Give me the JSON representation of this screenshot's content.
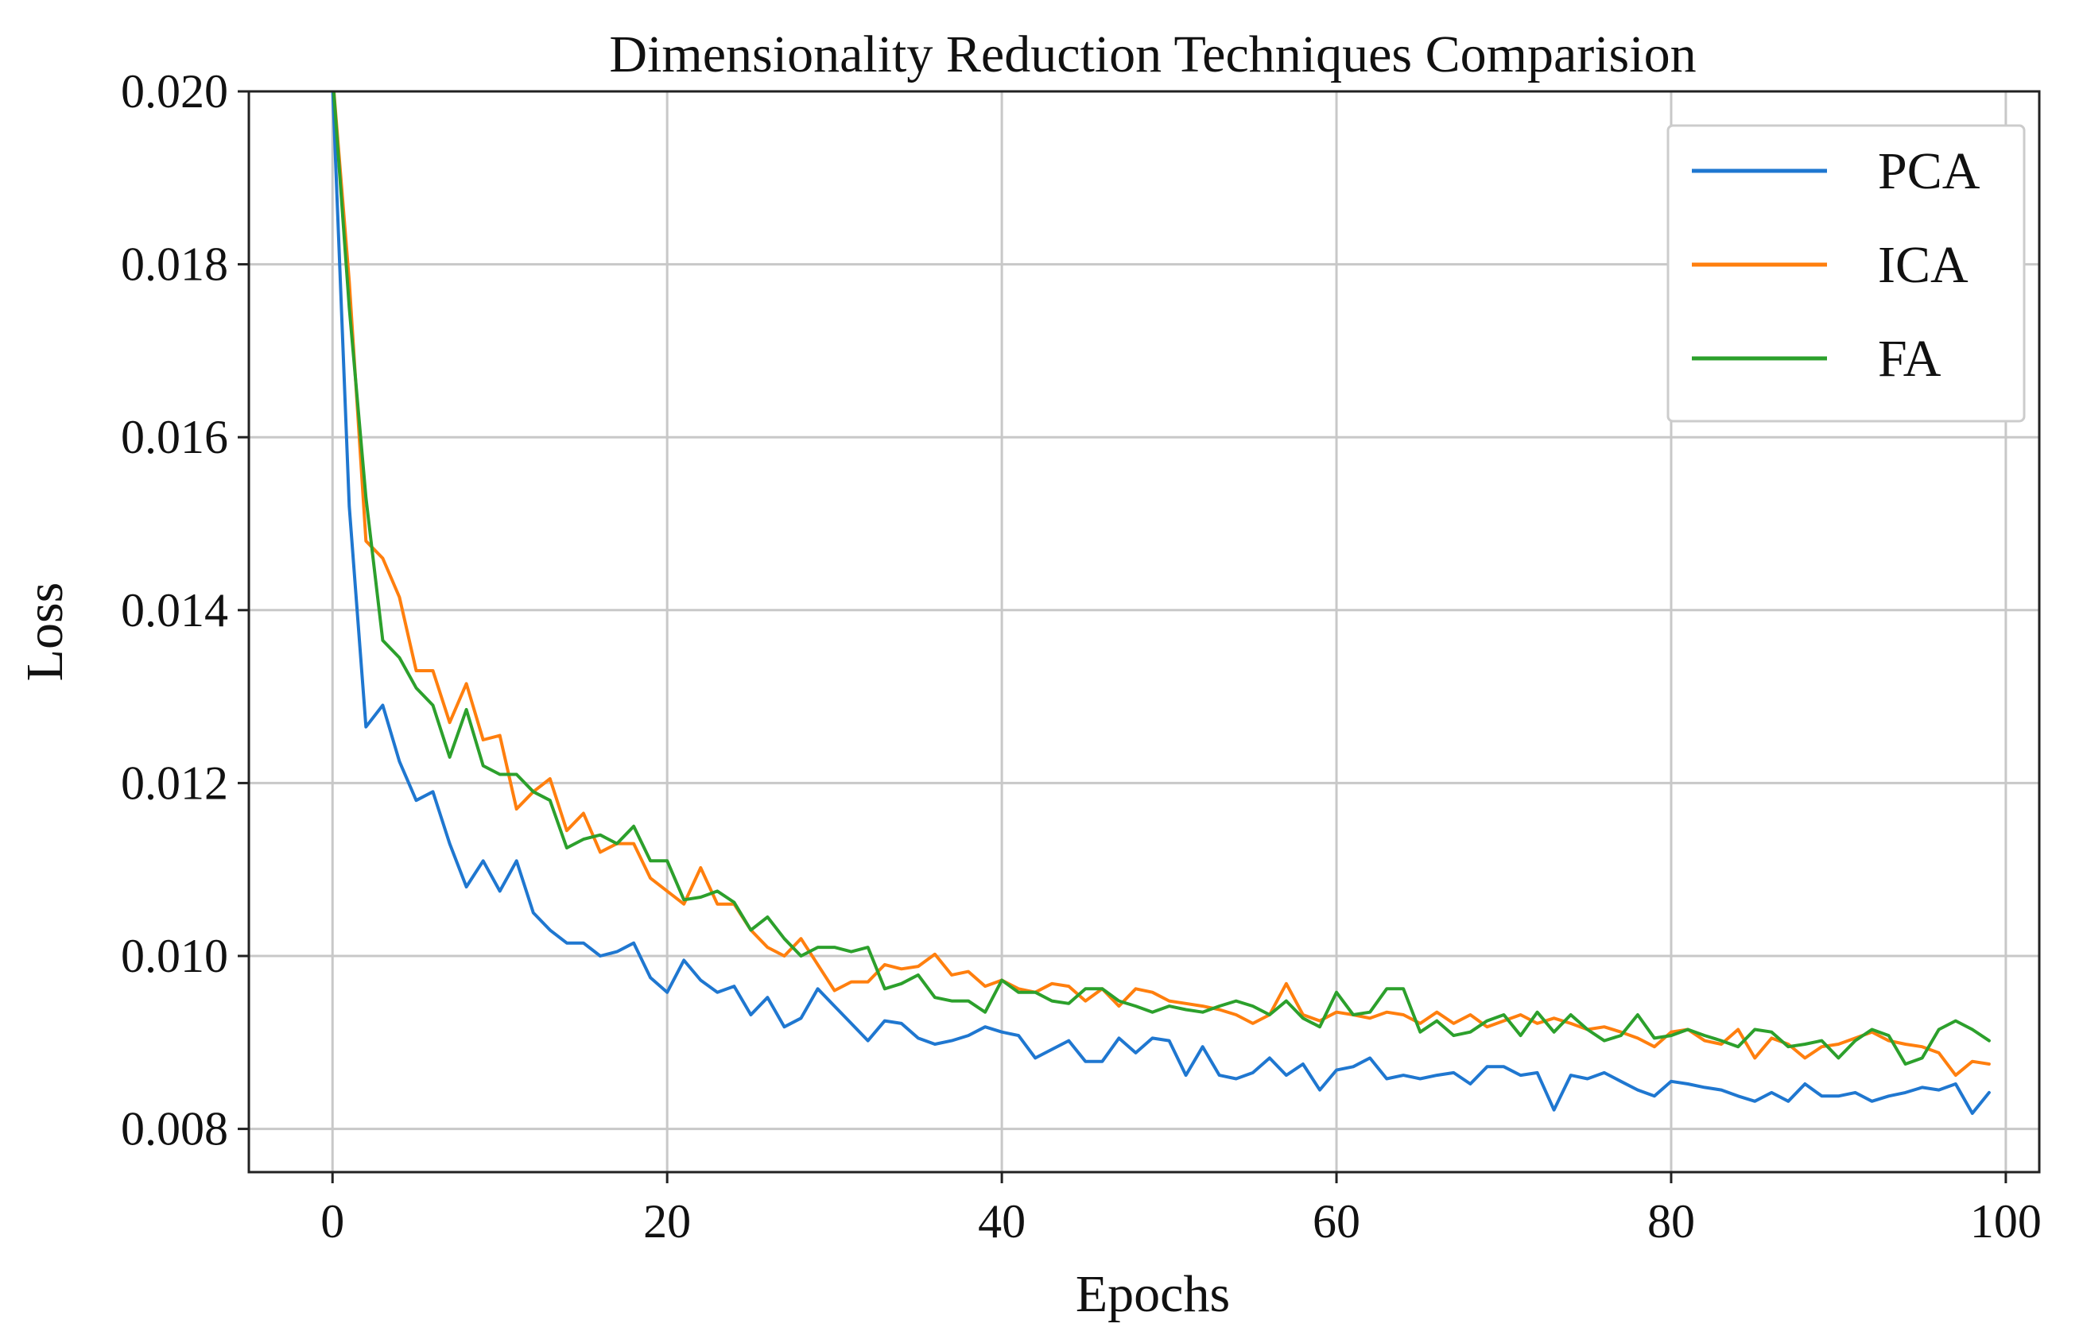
{
  "chart_data": {
    "type": "line",
    "title": "Dimensionality Reduction Techniques Comparision",
    "xlabel": "Epochs",
    "ylabel": "Loss",
    "xlim": [
      -5,
      102
    ],
    "ylim": [
      0.0075,
      0.02
    ],
    "xticks": [
      0,
      20,
      40,
      60,
      80,
      100
    ],
    "xtick_labels": [
      "0",
      "20",
      "40",
      "60",
      "80",
      "100"
    ],
    "yticks": [
      0.008,
      0.01,
      0.012,
      0.014,
      0.016,
      0.018,
      0.02
    ],
    "ytick_labels": [
      "0.008",
      "0.010",
      "0.012",
      "0.014",
      "0.016",
      "0.018",
      "0.020"
    ],
    "grid": true,
    "legend_position": "top-right",
    "x": [
      0,
      1,
      2,
      3,
      4,
      5,
      6,
      7,
      8,
      9,
      10,
      11,
      12,
      13,
      14,
      15,
      16,
      17,
      18,
      19,
      20,
      21,
      22,
      23,
      24,
      25,
      26,
      27,
      28,
      29,
      30,
      31,
      32,
      33,
      34,
      35,
      36,
      37,
      38,
      39,
      40,
      41,
      42,
      43,
      44,
      45,
      46,
      47,
      48,
      49,
      50,
      51,
      52,
      53,
      54,
      55,
      56,
      57,
      58,
      59,
      60,
      61,
      62,
      63,
      64,
      65,
      66,
      67,
      68,
      69,
      70,
      71,
      72,
      73,
      74,
      75,
      76,
      77,
      78,
      79,
      80,
      81,
      82,
      83,
      84,
      85,
      86,
      87,
      88,
      89,
      90,
      91,
      92,
      93,
      94,
      95,
      96,
      97,
      98,
      99
    ],
    "series": [
      {
        "name": "PCA",
        "color": "#1f77d0",
        "values": [
          0.0201,
          0.0152,
          0.01265,
          0.0129,
          0.01225,
          0.0118,
          0.0119,
          0.0113,
          0.0108,
          0.0111,
          0.01075,
          0.0111,
          0.0105,
          0.0103,
          0.01015,
          0.01015,
          0.01,
          0.01005,
          0.01015,
          0.00975,
          0.00958,
          0.00995,
          0.00972,
          0.00958,
          0.00965,
          0.00932,
          0.00952,
          0.00918,
          0.00928,
          0.00962,
          0.00942,
          0.00922,
          0.00902,
          0.00925,
          0.00922,
          0.00905,
          0.00898,
          0.00902,
          0.00908,
          0.00918,
          0.00912,
          0.00908,
          0.00882,
          0.00892,
          0.00902,
          0.00878,
          0.00878,
          0.00905,
          0.00888,
          0.00905,
          0.00902,
          0.00862,
          0.00895,
          0.00862,
          0.00858,
          0.00865,
          0.00882,
          0.00862,
          0.00875,
          0.00845,
          0.00868,
          0.00872,
          0.00882,
          0.00858,
          0.00862,
          0.00858,
          0.00862,
          0.00865,
          0.00852,
          0.00872,
          0.00872,
          0.00862,
          0.00865,
          0.00822,
          0.00862,
          0.00858,
          0.00865,
          0.00855,
          0.00845,
          0.00838,
          0.00855,
          0.00852,
          0.00848,
          0.00845,
          0.00838,
          0.00832,
          0.00842,
          0.00832,
          0.00852,
          0.00838,
          0.00838,
          0.00842,
          0.00832,
          0.00838,
          0.00842,
          0.00848,
          0.00845,
          0.00852,
          0.00818,
          0.00842
        ]
      },
      {
        "name": "ICA",
        "color": "#ff7f0e",
        "values": [
          0.0202,
          0.0178,
          0.0148,
          0.0146,
          0.01415,
          0.0133,
          0.0133,
          0.0127,
          0.01315,
          0.0125,
          0.01255,
          0.0117,
          0.0119,
          0.01205,
          0.01145,
          0.01165,
          0.0112,
          0.0113,
          0.0113,
          0.0109,
          0.01075,
          0.0106,
          0.01102,
          0.0106,
          0.0106,
          0.0103,
          0.0101,
          0.01,
          0.0102,
          0.0099,
          0.0096,
          0.0097,
          0.0097,
          0.0099,
          0.00985,
          0.00988,
          0.01002,
          0.00978,
          0.00982,
          0.00965,
          0.00972,
          0.00962,
          0.00958,
          0.00968,
          0.00965,
          0.00948,
          0.00962,
          0.00942,
          0.00962,
          0.00958,
          0.00948,
          0.00945,
          0.00942,
          0.00938,
          0.00932,
          0.00922,
          0.00932,
          0.00968,
          0.00932,
          0.00925,
          0.00935,
          0.00932,
          0.00928,
          0.00935,
          0.00932,
          0.00922,
          0.00935,
          0.00922,
          0.00932,
          0.00918,
          0.00925,
          0.00932,
          0.00922,
          0.00928,
          0.00922,
          0.00915,
          0.00918,
          0.00912,
          0.00905,
          0.00895,
          0.00912,
          0.00915,
          0.00902,
          0.00898,
          0.00915,
          0.00882,
          0.00905,
          0.00898,
          0.00882,
          0.00895,
          0.00898,
          0.00905,
          0.00912,
          0.00902,
          0.00898,
          0.00895,
          0.00888,
          0.00862,
          0.00878,
          0.00875
        ]
      },
      {
        "name": "FA",
        "color": "#2ca02c",
        "values": [
          0.0202,
          0.0175,
          0.0153,
          0.01365,
          0.01345,
          0.0131,
          0.0129,
          0.0123,
          0.01285,
          0.0122,
          0.0121,
          0.0121,
          0.0119,
          0.0118,
          0.01125,
          0.01135,
          0.0114,
          0.0113,
          0.0115,
          0.0111,
          0.0111,
          0.01065,
          0.01068,
          0.01075,
          0.01062,
          0.0103,
          0.01045,
          0.0102,
          0.01,
          0.0101,
          0.0101,
          0.01005,
          0.0101,
          0.00962,
          0.00968,
          0.00978,
          0.00952,
          0.00948,
          0.00948,
          0.00935,
          0.00972,
          0.00958,
          0.00958,
          0.00948,
          0.00945,
          0.00962,
          0.00962,
          0.00948,
          0.00942,
          0.00935,
          0.00942,
          0.00938,
          0.00935,
          0.00942,
          0.00948,
          0.00942,
          0.00932,
          0.00948,
          0.00928,
          0.00918,
          0.00958,
          0.00932,
          0.00935,
          0.00962,
          0.00962,
          0.00912,
          0.00925,
          0.00908,
          0.00912,
          0.00925,
          0.00932,
          0.00908,
          0.00935,
          0.00912,
          0.00932,
          0.00915,
          0.00902,
          0.00908,
          0.00932,
          0.00905,
          0.00908,
          0.00915,
          0.00908,
          0.00902,
          0.00895,
          0.00915,
          0.00912,
          0.00895,
          0.00898,
          0.00902,
          0.00882,
          0.00902,
          0.00915,
          0.00908,
          0.00875,
          0.00882,
          0.00915,
          0.00925,
          0.00915,
          0.00902
        ]
      }
    ]
  }
}
